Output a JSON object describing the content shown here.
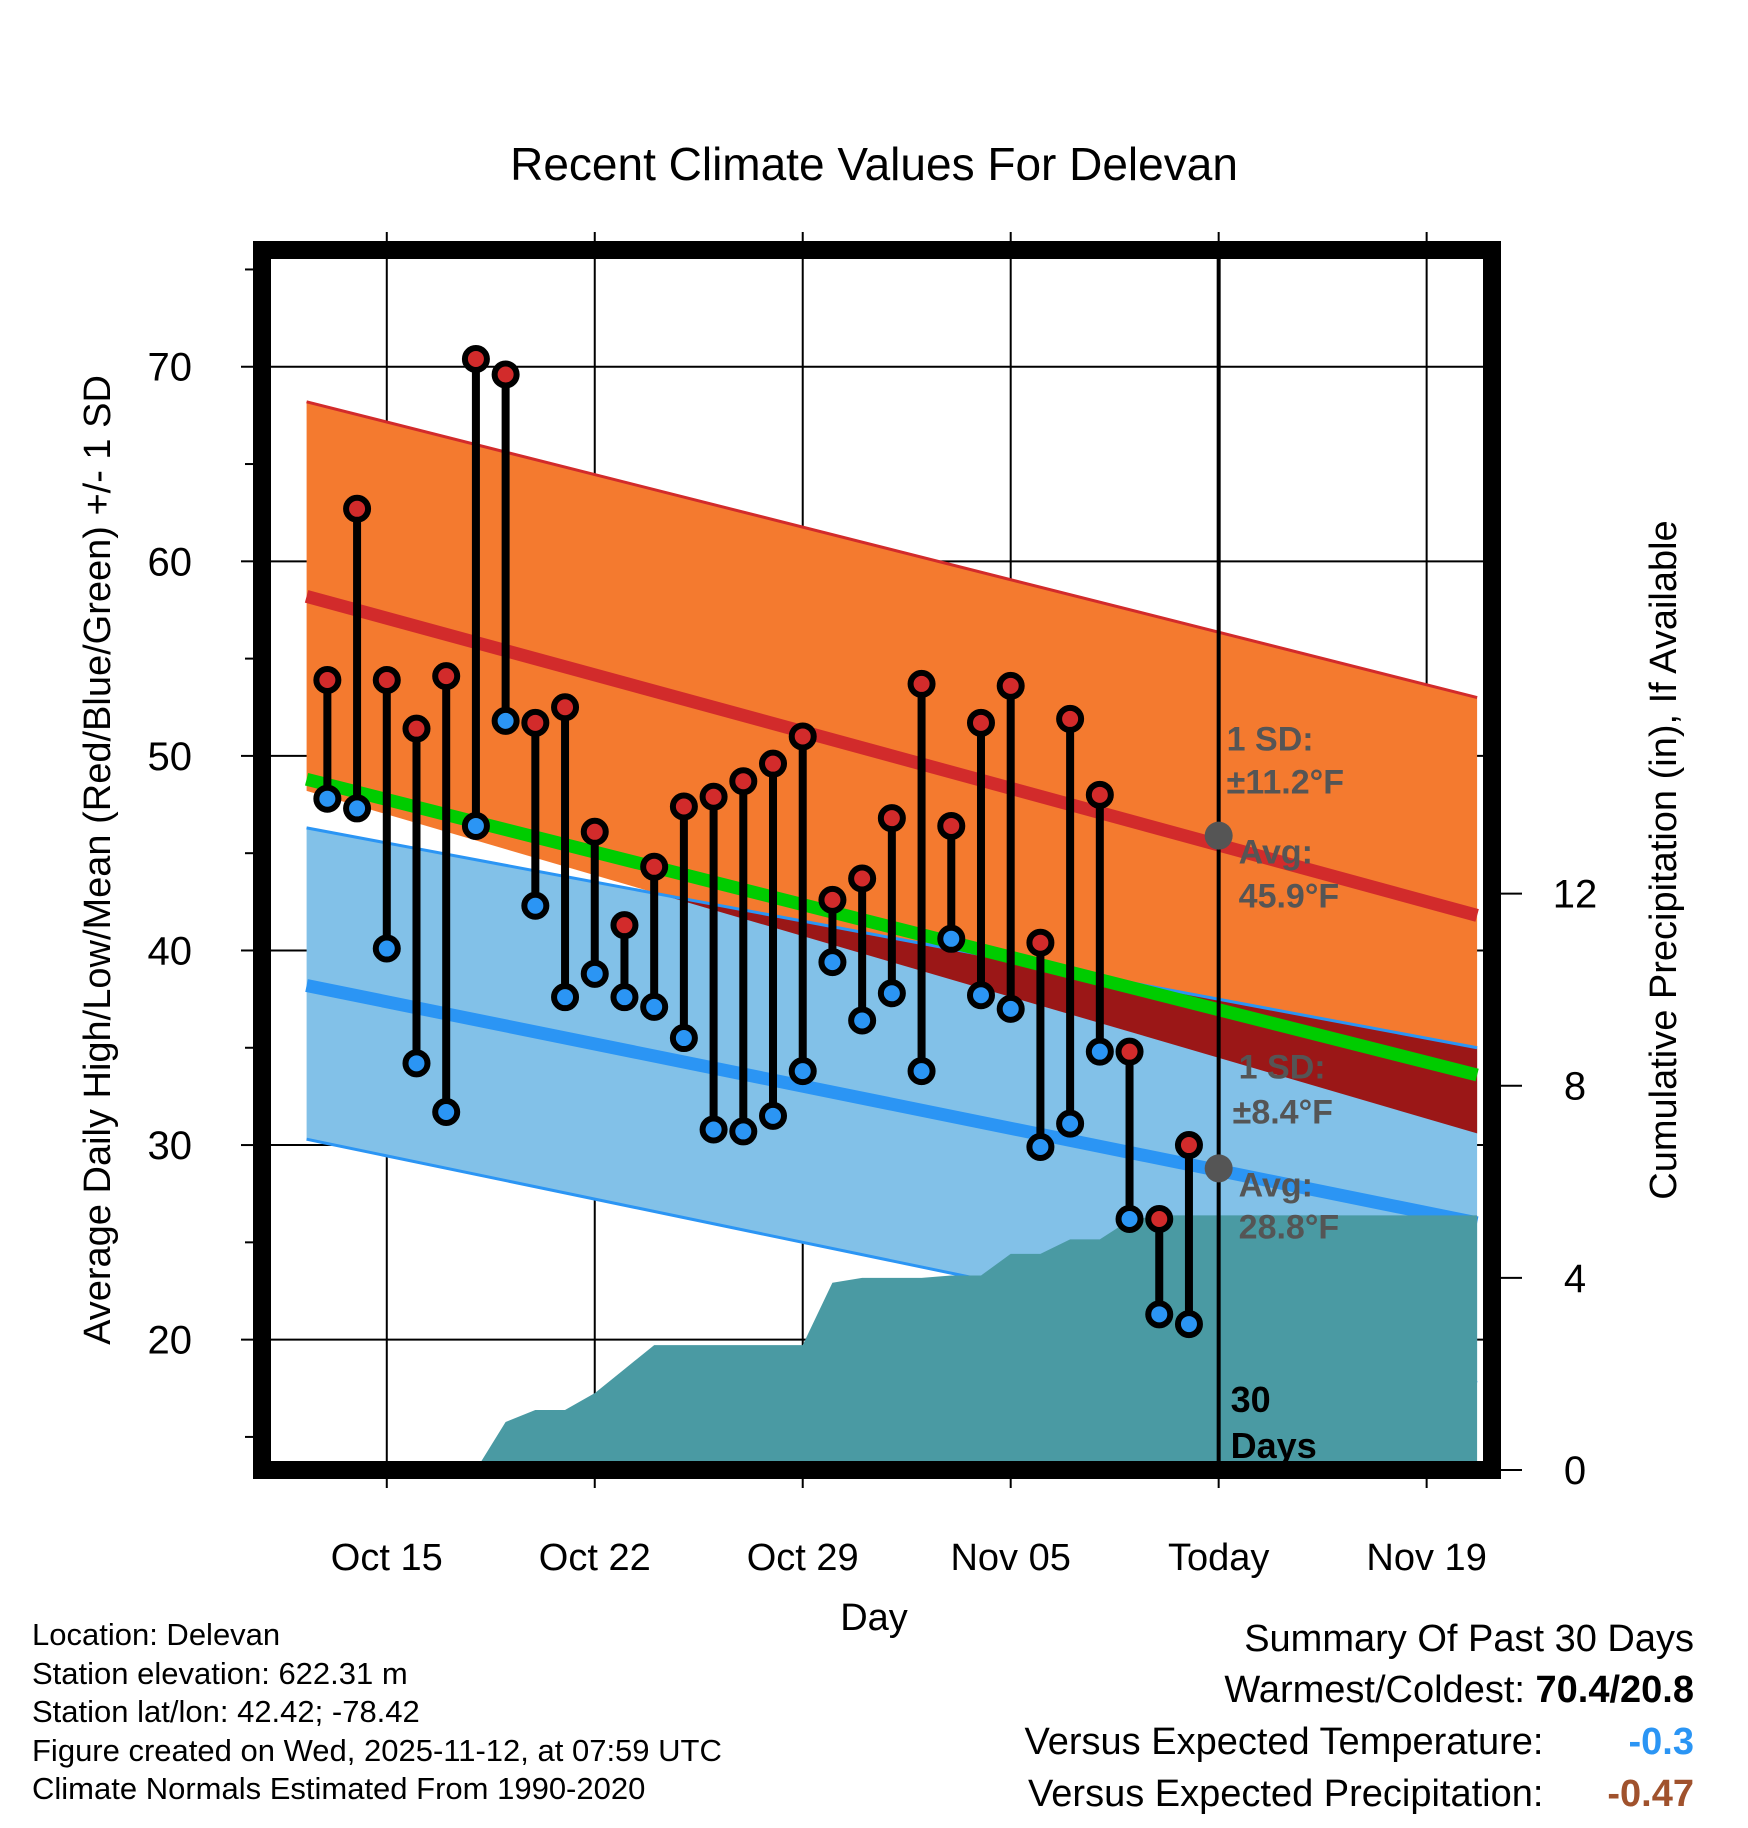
{
  "chart_data": {
    "type": "line",
    "title": "Recent Climate Values For Delevan",
    "xlabel": "Day",
    "ylabel": "Average Daily High/Low/Mean (Red/Blue/Green) +/- 1 SD",
    "y2label": "Cumulative Precipitation (in), If Available",
    "xlim": [
      -4.2,
      37.2
    ],
    "ylim": [
      13.3,
      76
    ],
    "y2lim": [
      0,
      25.4
    ],
    "x_ticks": [
      {
        "x": 0,
        "label": "Oct 15"
      },
      {
        "x": 7,
        "label": "Oct 22"
      },
      {
        "x": 14,
        "label": "Oct 29"
      },
      {
        "x": 21,
        "label": "Nov 05"
      },
      {
        "x": 28,
        "label": "Today"
      },
      {
        "x": 35,
        "label": "Nov 19"
      }
    ],
    "y_ticks": [
      20,
      30,
      40,
      50,
      60,
      70
    ],
    "y2_ticks": [
      0,
      4,
      8,
      12
    ],
    "today_x": 28,
    "today_label": [
      "30",
      "Days"
    ],
    "normals": {
      "x_range": [
        -2.7,
        36.7
      ],
      "high_avg": [
        58.2,
        41.8
      ],
      "high_upper": [
        68.2,
        53.0
      ],
      "low_avg": [
        38.2,
        26.0
      ],
      "low_upper": [
        46.3,
        35.0
      ],
      "low_lower": [
        30.3,
        17.8
      ],
      "mean_avg": [
        48.8,
        33.6
      ]
    },
    "annotations": {
      "high_sd_label": "1 SD:",
      "high_sd_value": "±11.2°F",
      "high_avg_label": "Avg:",
      "high_avg_value": "45.9°F",
      "high_avg_at_today": 45.9,
      "low_sd_label": "1 SD:",
      "low_sd_value": "±8.4°F",
      "low_avg_label": "Avg:",
      "low_avg_value": "28.8°F",
      "low_avg_at_today": 28.8
    },
    "daily_x": [
      -2,
      -1,
      0,
      1,
      2,
      3,
      4,
      5,
      6,
      7,
      8,
      9,
      10,
      11,
      12,
      13,
      14,
      15,
      16,
      17,
      18,
      19,
      20,
      21,
      22,
      23,
      24,
      25,
      26,
      27
    ],
    "daily_high": [
      53.9,
      62.7,
      53.9,
      51.4,
      54.1,
      70.4,
      69.6,
      51.7,
      52.5,
      46.1,
      41.3,
      44.3,
      47.4,
      47.9,
      48.7,
      49.6,
      51.0,
      42.6,
      43.7,
      46.8,
      53.7,
      46.4,
      51.7,
      53.6,
      40.4,
      51.9,
      48.0,
      34.8,
      26.2,
      30.0
    ],
    "daily_low": [
      47.8,
      47.3,
      40.1,
      34.2,
      31.7,
      46.4,
      51.8,
      42.3,
      37.6,
      38.8,
      37.6,
      37.1,
      35.5,
      30.8,
      30.7,
      31.5,
      33.8,
      39.4,
      36.4,
      37.8,
      33.8,
      40.6,
      37.7,
      37.0,
      29.9,
      31.1,
      34.8,
      26.2,
      21.3,
      20.8
    ],
    "precip_steps": [
      [
        3,
        0
      ],
      [
        4,
        1.0
      ],
      [
        5,
        1.25
      ],
      [
        6,
        1.25
      ],
      [
        7,
        1.6
      ],
      [
        8,
        2.1
      ],
      [
        9,
        2.6
      ],
      [
        10,
        2.6
      ],
      [
        11,
        2.6
      ],
      [
        12,
        2.6
      ],
      [
        13,
        2.6
      ],
      [
        14,
        2.6
      ],
      [
        15,
        3.9
      ],
      [
        16,
        4.0
      ],
      [
        17,
        4.0
      ],
      [
        18,
        4.0
      ],
      [
        19,
        4.05
      ],
      [
        20,
        4.05
      ],
      [
        21,
        4.5
      ],
      [
        22,
        4.5
      ],
      [
        23,
        4.8
      ],
      [
        24,
        4.8
      ],
      [
        25,
        5.2
      ],
      [
        26,
        5.3
      ],
      [
        27,
        5.3
      ],
      [
        28,
        5.3
      ],
      [
        36.7,
        5.3
      ]
    ]
  },
  "footer": {
    "location": "Location: Delevan",
    "elevation": "Station elevation: 622.31 m",
    "latlon": "Station lat/lon: 42.42; -78.42",
    "created": "Figure created on Wed, 2025-11-12, at 07:59 UTC",
    "normals": "Climate Normals Estimated From 1990-2020"
  },
  "summary": {
    "title": "Summary Of Past 30 Days",
    "warmest_label": "Warmest/Coldest:",
    "warmest_value": "70.4/20.8",
    "temp_label": "Versus Expected Temperature:",
    "temp_value": "-0.3",
    "precip_label": "Versus Expected Precipitation:",
    "precip_value": "-0.47"
  },
  "colors": {
    "high_band": "#f47a2f",
    "high_line": "#d22b2b",
    "low_band": "#82c1e8",
    "low_line": "#2b95f4",
    "mean_line": "#00cc00",
    "overlap": "#9b1717",
    "precip": "#4a9aa3",
    "marker_high": "#d22b2b",
    "marker_low": "#2b95f4",
    "annotation": "#555555",
    "temp_value": "#2b95f4",
    "precip_value": "#a0522d"
  }
}
